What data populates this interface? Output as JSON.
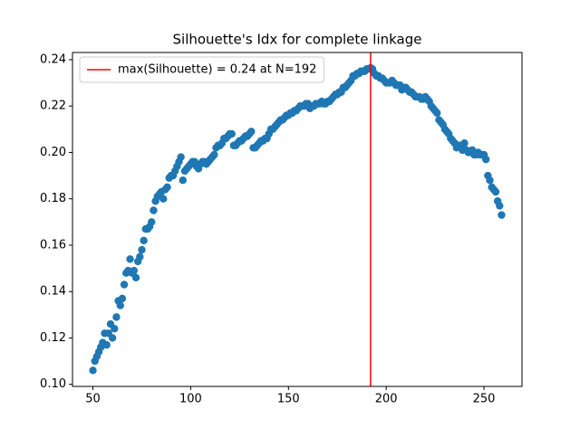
{
  "chart_data": {
    "type": "scatter",
    "title": "Silhouette's Idx for complete linkage",
    "x": [
      50,
      51,
      52,
      53,
      54,
      55,
      56,
      57,
      58,
      59,
      60,
      61,
      62,
      63,
      64,
      65,
      66,
      67,
      68,
      69,
      70,
      71,
      72,
      73,
      74,
      75,
      76,
      77,
      78,
      79,
      80,
      81,
      82,
      83,
      84,
      85,
      86,
      87,
      88,
      89,
      90,
      91,
      92,
      93,
      94,
      95,
      96,
      97,
      98,
      99,
      100,
      101,
      102,
      103,
      104,
      105,
      106,
      107,
      108,
      109,
      110,
      111,
      112,
      113,
      114,
      115,
      116,
      117,
      118,
      119,
      120,
      121,
      122,
      123,
      124,
      125,
      126,
      127,
      128,
      129,
      130,
      131,
      132,
      133,
      134,
      135,
      136,
      137,
      138,
      139,
      140,
      141,
      142,
      143,
      144,
      145,
      146,
      147,
      148,
      149,
      150,
      151,
      152,
      153,
      154,
      155,
      156,
      157,
      158,
      159,
      160,
      161,
      162,
      163,
      164,
      165,
      166,
      167,
      168,
      169,
      170,
      171,
      172,
      173,
      174,
      175,
      176,
      177,
      178,
      179,
      180,
      181,
      182,
      183,
      184,
      185,
      186,
      187,
      188,
      189,
      190,
      191,
      192,
      193,
      194,
      195,
      196,
      197,
      198,
      199,
      200,
      201,
      202,
      203,
      204,
      205,
      206,
      207,
      208,
      209,
      210,
      211,
      212,
      213,
      214,
      215,
      216,
      217,
      218,
      219,
      220,
      221,
      222,
      223,
      224,
      225,
      226,
      227,
      228,
      229,
      230,
      231,
      232,
      233,
      234,
      235,
      236,
      237,
      238,
      239,
      240,
      241,
      242,
      243,
      244,
      245,
      246,
      247,
      248,
      249,
      250,
      251,
      252,
      253,
      254,
      255,
      256,
      257,
      258,
      259
    ],
    "series": [
      {
        "color": "#1f77b4",
        "values": [
          0.106,
          0.11,
          0.112,
          0.114,
          0.116,
          0.118,
          0.122,
          0.117,
          0.122,
          0.126,
          0.12,
          0.124,
          0.129,
          0.136,
          0.134,
          0.137,
          0.143,
          0.148,
          0.149,
          0.154,
          0.148,
          0.149,
          0.146,
          0.153,
          0.155,
          0.158,
          0.162,
          0.167,
          0.167,
          0.168,
          0.17,
          0.175,
          0.179,
          0.181,
          0.182,
          0.183,
          0.18,
          0.184,
          0.185,
          0.189,
          0.19,
          0.19,
          0.192,
          0.194,
          0.196,
          0.198,
          0.188,
          0.192,
          0.193,
          0.194,
          0.195,
          0.196,
          0.196,
          0.194,
          0.193,
          0.195,
          0.196,
          0.196,
          0.195,
          0.196,
          0.197,
          0.198,
          0.199,
          0.202,
          0.203,
          0.203,
          0.204,
          0.206,
          0.206,
          0.207,
          0.208,
          0.208,
          0.203,
          0.203,
          0.204,
          0.205,
          0.205,
          0.206,
          0.207,
          0.207,
          0.208,
          0.209,
          0.202,
          0.202,
          0.203,
          0.204,
          0.205,
          0.205,
          0.206,
          0.206,
          0.208,
          0.21,
          0.21,
          0.211,
          0.212,
          0.213,
          0.214,
          0.214,
          0.215,
          0.216,
          0.216,
          0.217,
          0.217,
          0.218,
          0.218,
          0.219,
          0.22,
          0.22,
          0.22,
          0.221,
          0.221,
          0.219,
          0.22,
          0.22,
          0.221,
          0.221,
          0.221,
          0.222,
          0.221,
          0.221,
          0.222,
          0.222,
          0.223,
          0.224,
          0.225,
          0.225,
          0.226,
          0.226,
          0.228,
          0.228,
          0.229,
          0.23,
          0.231,
          0.233,
          0.233,
          0.234,
          0.234,
          0.235,
          0.235,
          0.235,
          0.236,
          0.236,
          0.2365,
          0.236,
          0.234,
          0.233,
          0.233,
          0.232,
          0.232,
          0.231,
          0.23,
          0.23,
          0.23,
          0.231,
          0.23,
          0.229,
          0.229,
          0.229,
          0.227,
          0.228,
          0.228,
          0.227,
          0.226,
          0.226,
          0.225,
          0.224,
          0.224,
          0.224,
          0.223,
          0.223,
          0.224,
          0.223,
          0.222,
          0.22,
          0.219,
          0.218,
          0.217,
          0.214,
          0.213,
          0.212,
          0.21,
          0.209,
          0.208,
          0.206,
          0.205,
          0.204,
          0.202,
          0.203,
          0.203,
          0.201,
          0.204,
          0.201,
          0.2,
          0.2,
          0.201,
          0.199,
          0.199,
          0.2,
          0.199,
          0.199,
          0.199,
          0.197,
          0.19,
          0.188,
          0.185,
          0.184,
          0.183,
          0.179,
          0.177,
          0.173
        ]
      }
    ],
    "vline": {
      "x": 192,
      "color": "#ff0000",
      "label": "max(Silhouette) = 0.24 at N=192"
    },
    "xlim": [
      39.55,
      269.45
    ],
    "ylim": [
      0.0991,
      0.2431
    ],
    "xticks": [
      50,
      100,
      150,
      200,
      250
    ],
    "yticks": [
      {
        "value": 0.1,
        "label": "0.10"
      },
      {
        "value": 0.12,
        "label": "0.12"
      },
      {
        "value": 0.14,
        "label": "0.14"
      },
      {
        "value": 0.16,
        "label": "0.16"
      },
      {
        "value": 0.18,
        "label": "0.18"
      },
      {
        "value": 0.2,
        "label": "0.20"
      },
      {
        "value": 0.22,
        "label": "0.22"
      },
      {
        "value": 0.24,
        "label": "0.24"
      }
    ],
    "legend": "upper left"
  }
}
